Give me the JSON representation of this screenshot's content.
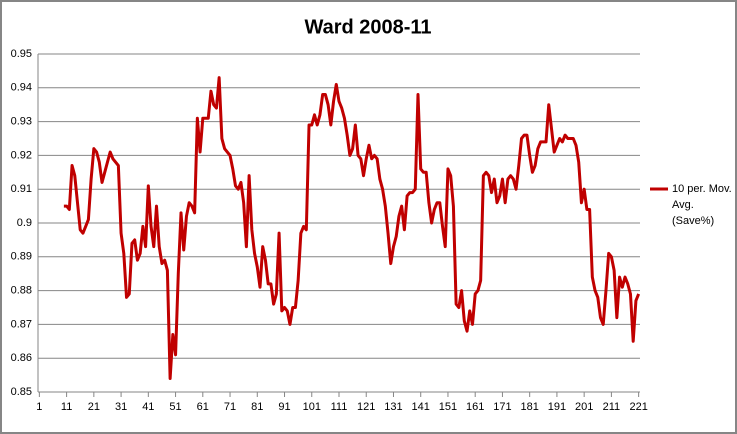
{
  "chart_data": {
    "type": "line",
    "title": "Ward 2008-11",
    "x": [
      10,
      11,
      12,
      13,
      14,
      15,
      16,
      17,
      18,
      19,
      20,
      21,
      22,
      23,
      24,
      25,
      26,
      27,
      28,
      29,
      30,
      31,
      32,
      33,
      34,
      35,
      36,
      37,
      38,
      39,
      40,
      41,
      42,
      43,
      44,
      45,
      46,
      47,
      48,
      49,
      50,
      51,
      52,
      53,
      54,
      55,
      56,
      57,
      58,
      59,
      60,
      61,
      62,
      63,
      64,
      65,
      66,
      67,
      68,
      69,
      70,
      71,
      72,
      73,
      74,
      75,
      76,
      77,
      78,
      79,
      80,
      81,
      82,
      83,
      84,
      85,
      86,
      87,
      88,
      89,
      90,
      91,
      92,
      93,
      94,
      95,
      96,
      97,
      98,
      99,
      100,
      101,
      102,
      103,
      104,
      105,
      106,
      107,
      108,
      109,
      110,
      111,
      112,
      113,
      114,
      115,
      116,
      117,
      118,
      119,
      120,
      121,
      122,
      123,
      124,
      125,
      126,
      127,
      128,
      129,
      130,
      131,
      132,
      133,
      134,
      135,
      136,
      137,
      138,
      139,
      140,
      141,
      142,
      143,
      144,
      145,
      146,
      147,
      148,
      149,
      150,
      151,
      152,
      153,
      154,
      155,
      156,
      157,
      158,
      159,
      160,
      161,
      162,
      163,
      164,
      165,
      166,
      167,
      168,
      169,
      170,
      171,
      172,
      173,
      174,
      175,
      176,
      177,
      178,
      179,
      180,
      181,
      182,
      183,
      184,
      185,
      186,
      187,
      188,
      189,
      190,
      191,
      192,
      193,
      194,
      195,
      196,
      197,
      198,
      199,
      200,
      201,
      202,
      203,
      204,
      205,
      206,
      207,
      208,
      209,
      210,
      211,
      212,
      213,
      214,
      215,
      216,
      217,
      218,
      219,
      220,
      221
    ],
    "series": [
      {
        "name": "10 per. Mov. Avg. (Save%)",
        "color": "#c00000",
        "values": [
          0.905,
          0.905,
          0.904,
          0.917,
          0.914,
          0.906,
          0.898,
          0.897,
          0.899,
          0.901,
          0.913,
          0.922,
          0.921,
          0.918,
          0.912,
          0.915,
          0.918,
          0.921,
          0.919,
          0.918,
          0.917,
          0.897,
          0.891,
          0.878,
          0.879,
          0.894,
          0.895,
          0.889,
          0.891,
          0.899,
          0.893,
          0.911,
          0.899,
          0.893,
          0.905,
          0.893,
          0.888,
          0.889,
          0.886,
          0.854,
          0.867,
          0.861,
          0.885,
          0.903,
          0.892,
          0.902,
          0.906,
          0.905,
          0.903,
          0.931,
          0.921,
          0.931,
          0.931,
          0.931,
          0.939,
          0.935,
          0.934,
          0.943,
          0.925,
          0.922,
          0.921,
          0.92,
          0.916,
          0.911,
          0.91,
          0.912,
          0.906,
          0.893,
          0.914,
          0.898,
          0.891,
          0.887,
          0.881,
          0.893,
          0.889,
          0.882,
          0.882,
          0.876,
          0.879,
          0.897,
          0.874,
          0.875,
          0.874,
          0.87,
          0.875,
          0.875,
          0.883,
          0.897,
          0.899,
          0.898,
          0.929,
          0.929,
          0.932,
          0.929,
          0.932,
          0.938,
          0.938,
          0.935,
          0.929,
          0.936,
          0.941,
          0.936,
          0.934,
          0.931,
          0.926,
          0.92,
          0.922,
          0.929,
          0.92,
          0.919,
          0.914,
          0.919,
          0.923,
          0.919,
          0.92,
          0.919,
          0.913,
          0.91,
          0.905,
          0.897,
          0.888,
          0.893,
          0.896,
          0.902,
          0.905,
          0.898,
          0.908,
          0.909,
          0.909,
          0.91,
          0.938,
          0.916,
          0.915,
          0.915,
          0.906,
          0.9,
          0.904,
          0.906,
          0.906,
          0.899,
          0.893,
          0.916,
          0.914,
          0.905,
          0.876,
          0.875,
          0.88,
          0.871,
          0.868,
          0.874,
          0.87,
          0.879,
          0.88,
          0.883,
          0.914,
          0.915,
          0.914,
          0.909,
          0.913,
          0.906,
          0.908,
          0.913,
          0.906,
          0.913,
          0.914,
          0.913,
          0.91,
          0.917,
          0.925,
          0.926,
          0.926,
          0.92,
          0.915,
          0.917,
          0.922,
          0.924,
          0.924,
          0.924,
          0.935,
          0.928,
          0.921,
          0.923,
          0.925,
          0.924,
          0.926,
          0.925,
          0.925,
          0.925,
          0.923,
          0.918,
          0.906,
          0.91,
          0.904,
          0.904,
          0.884,
          0.88,
          0.878,
          0.872,
          0.87,
          0.88,
          0.891,
          0.89,
          0.886,
          0.872,
          0.884,
          0.881,
          0.884,
          0.882,
          0.879,
          0.865,
          0.877,
          0.879
        ]
      }
    ],
    "xlim": [
      0.5,
      221.5
    ],
    "xticks": [
      1,
      11,
      21,
      31,
      41,
      51,
      61,
      71,
      81,
      91,
      101,
      111,
      121,
      131,
      141,
      151,
      161,
      171,
      181,
      191,
      201,
      211,
      221
    ],
    "ylim": [
      0.85,
      0.95
    ],
    "yticks": [
      0.85,
      0.86,
      0.87,
      0.88,
      0.89,
      0.9,
      0.91,
      0.92,
      0.93,
      0.94,
      0.95
    ],
    "grid": true,
    "legend": "right"
  }
}
